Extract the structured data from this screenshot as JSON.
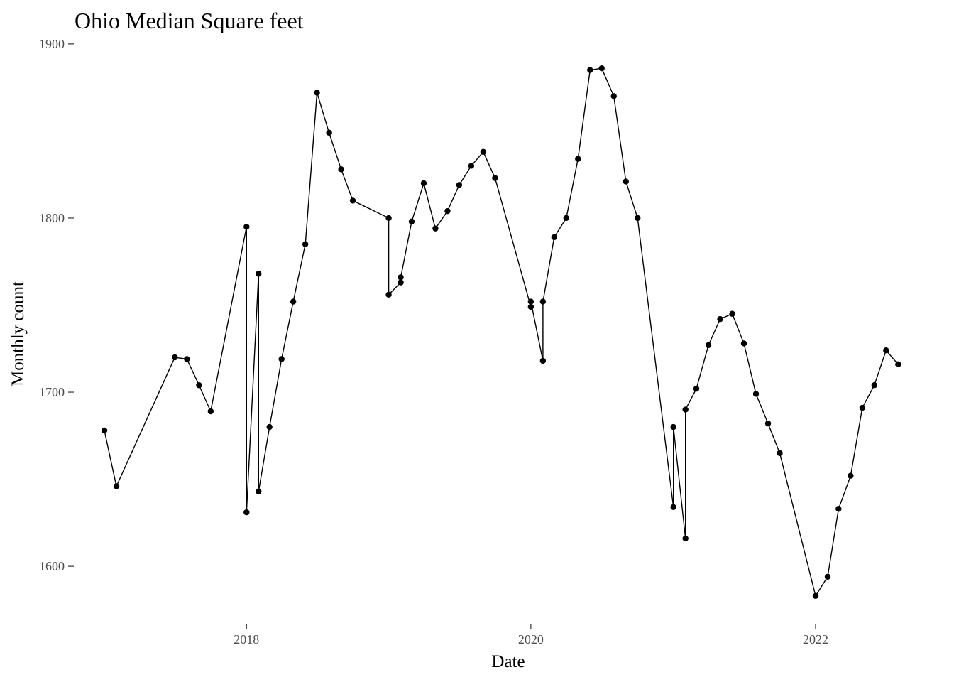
{
  "chart_data": {
    "type": "line",
    "title": "Ohio Median Square feet",
    "xlabel": "Date",
    "ylabel": "Monthly count",
    "x_ticks": [
      "2018",
      "2020",
      "2022"
    ],
    "y_ticks": [
      "1600",
      "1700",
      "1800",
      "1900"
    ],
    "xlim": [
      "2016-12-01",
      "2022-09-15"
    ],
    "ylim": [
      1567,
      1913
    ],
    "grid": false,
    "series": [
      {
        "points": [
          [
            "2017-01-01",
            1678
          ],
          [
            "2017-02-01",
            1646
          ],
          [
            "2017-07-01",
            1720
          ],
          [
            "2017-08-01",
            1719
          ],
          [
            "2017-09-01",
            1704
          ],
          [
            "2017-10-01",
            1689
          ],
          [
            "2018-01-01",
            1795
          ],
          [
            "2018-01-01",
            1631
          ],
          [
            "2018-02-01",
            1768
          ],
          [
            "2018-02-01",
            1643
          ],
          [
            "2018-03-01",
            1680
          ],
          [
            "2018-04-01",
            1719
          ],
          [
            "2018-05-01",
            1752
          ],
          [
            "2018-06-01",
            1785
          ],
          [
            "2018-07-01",
            1872
          ],
          [
            "2018-08-01",
            1849
          ],
          [
            "2018-09-01",
            1828
          ],
          [
            "2018-10-01",
            1810
          ],
          [
            "2019-01-01",
            1800
          ],
          [
            "2019-01-01",
            1756
          ],
          [
            "2019-02-01",
            1763
          ],
          [
            "2019-02-01",
            1766
          ],
          [
            "2019-03-01",
            1798
          ],
          [
            "2019-04-01",
            1820
          ],
          [
            "2019-05-01",
            1794
          ],
          [
            "2019-06-01",
            1804
          ],
          [
            "2019-07-01",
            1819
          ],
          [
            "2019-08-01",
            1830
          ],
          [
            "2019-09-01",
            1838
          ],
          [
            "2019-10-01",
            1823
          ],
          [
            "2020-01-01",
            1749
          ],
          [
            "2020-01-01",
            1752
          ],
          [
            "2020-02-01",
            1718
          ],
          [
            "2020-02-01",
            1752
          ],
          [
            "2020-03-01",
            1789
          ],
          [
            "2020-04-01",
            1800
          ],
          [
            "2020-05-01",
            1834
          ],
          [
            "2020-06-01",
            1885
          ],
          [
            "2020-07-01",
            1886
          ],
          [
            "2020-08-01",
            1870
          ],
          [
            "2020-09-01",
            1821
          ],
          [
            "2020-10-01",
            1800
          ],
          [
            "2021-01-01",
            1634
          ],
          [
            "2021-01-01",
            1680
          ],
          [
            "2021-02-01",
            1616
          ],
          [
            "2021-02-01",
            1690
          ],
          [
            "2021-03-01",
            1702
          ],
          [
            "2021-04-01",
            1727
          ],
          [
            "2021-05-01",
            1742
          ],
          [
            "2021-06-01",
            1745
          ],
          [
            "2021-07-01",
            1728
          ],
          [
            "2021-08-01",
            1699
          ],
          [
            "2021-09-01",
            1682
          ],
          [
            "2021-10-01",
            1665
          ],
          [
            "2022-01-01",
            1583
          ],
          [
            "2022-02-01",
            1594
          ],
          [
            "2022-03-01",
            1633
          ],
          [
            "2022-04-01",
            1652
          ],
          [
            "2022-05-01",
            1691
          ],
          [
            "2022-06-01",
            1704
          ],
          [
            "2022-07-01",
            1724
          ],
          [
            "2022-08-01",
            1716
          ]
        ]
      }
    ]
  }
}
